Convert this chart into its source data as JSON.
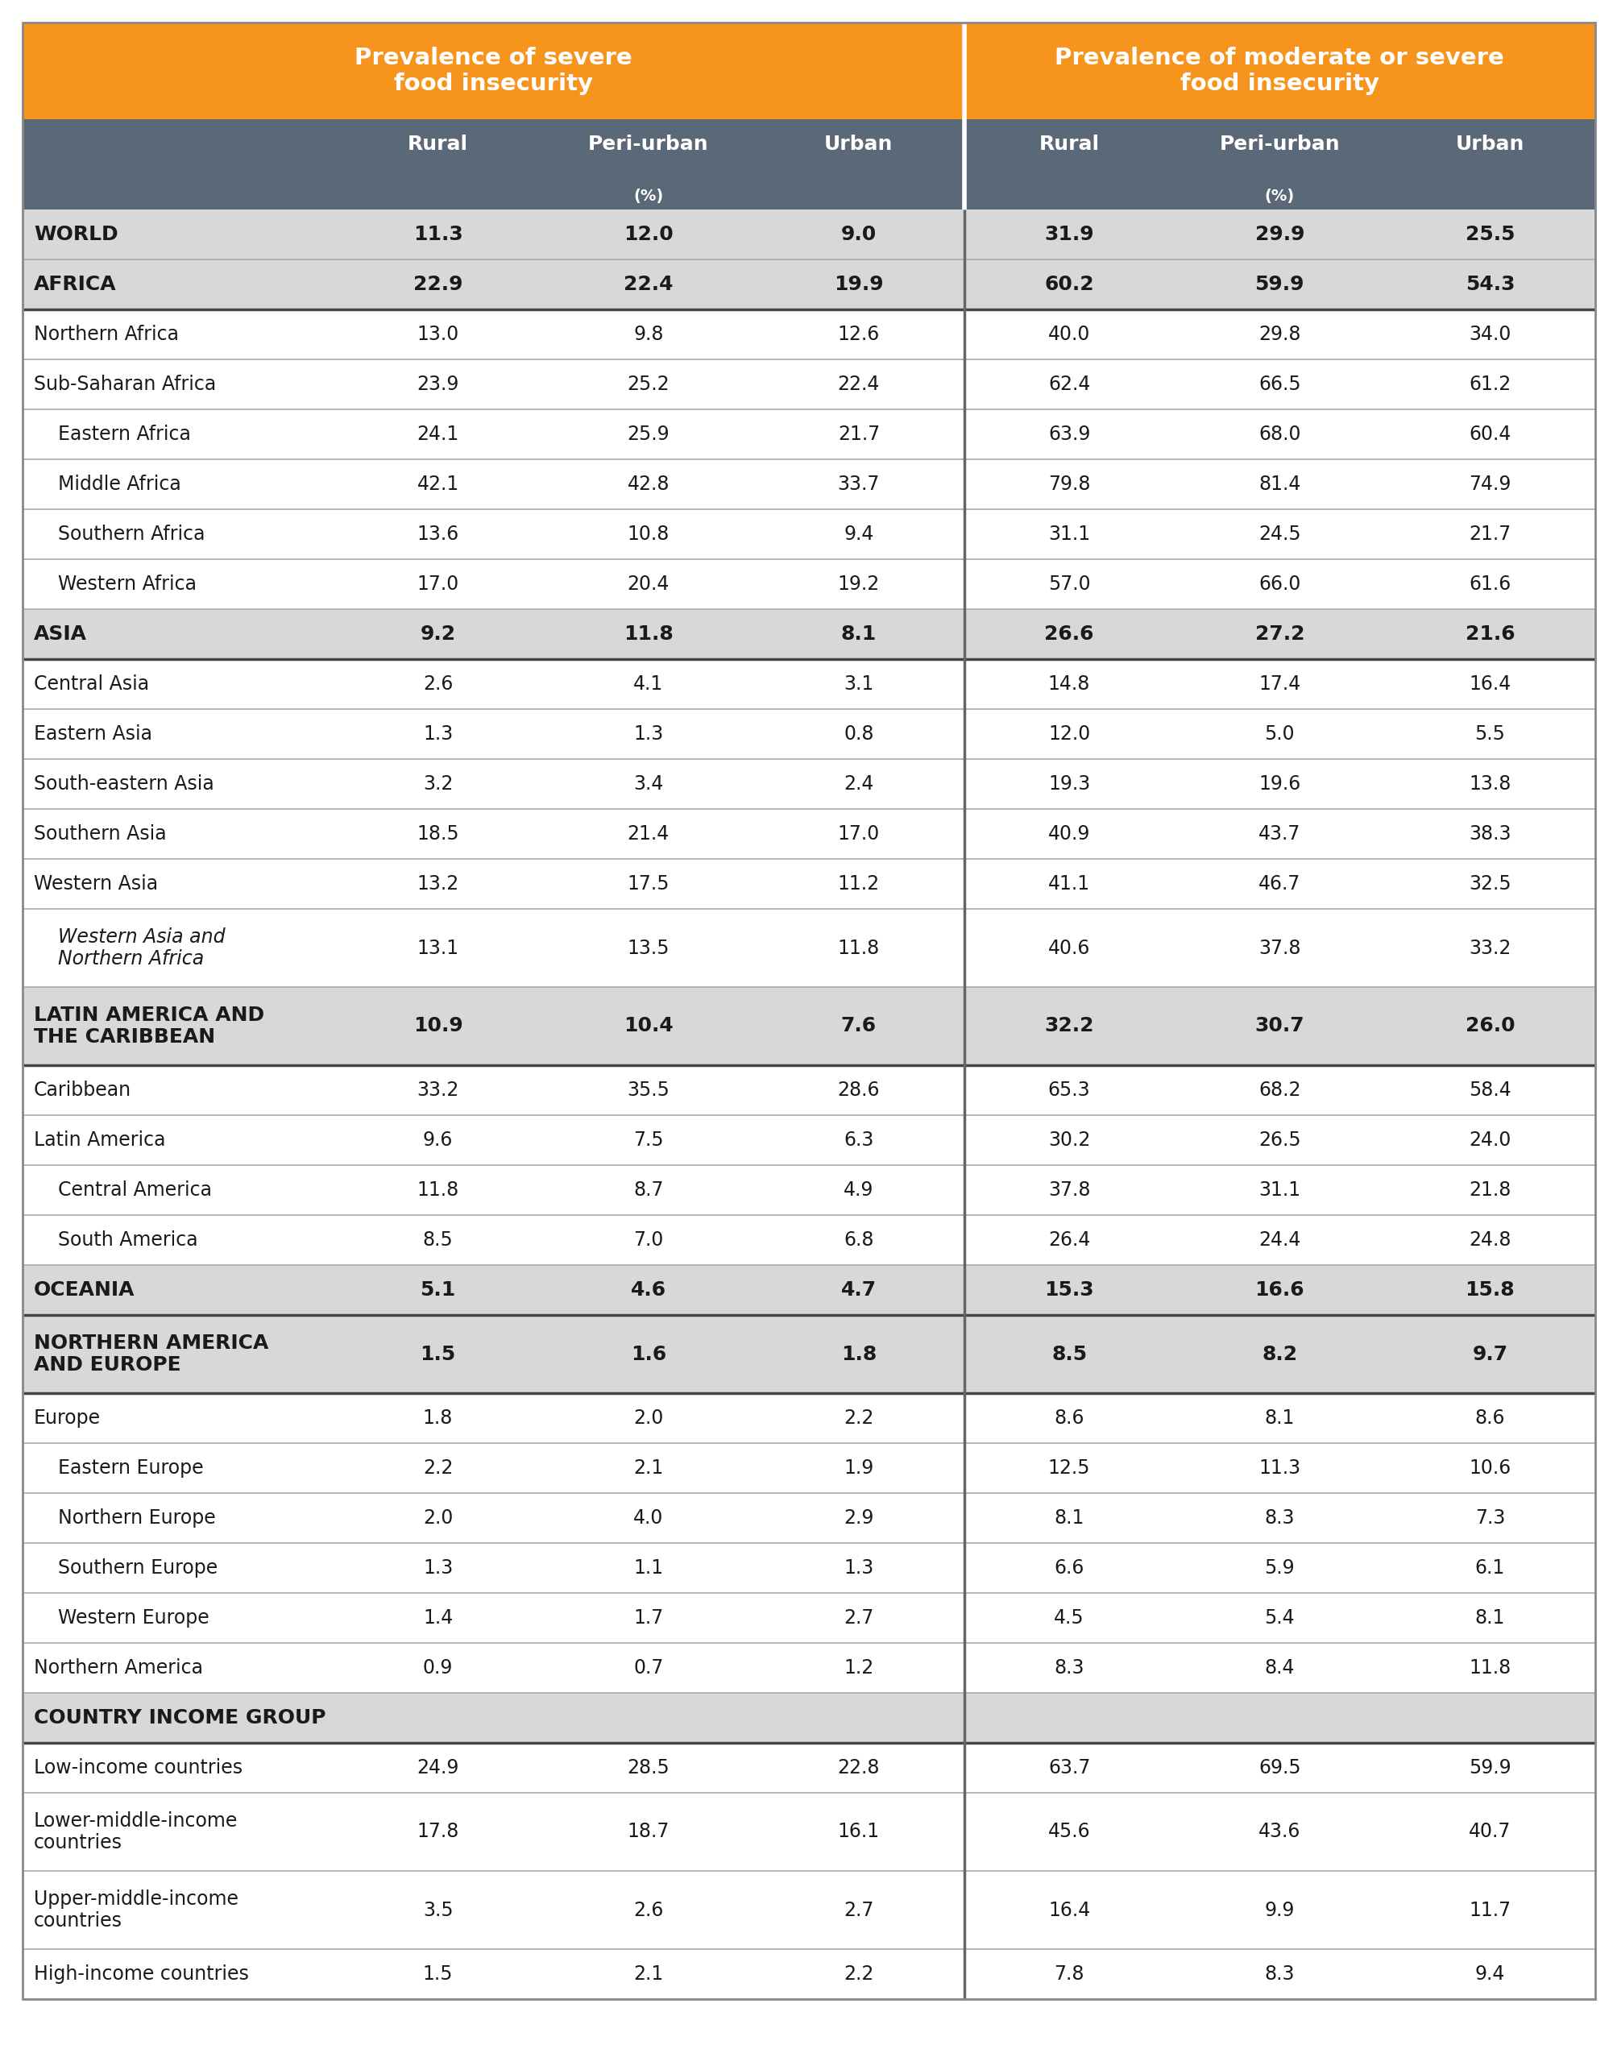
{
  "col1_header": "Prevalence of severe\nfood insecurity",
  "col2_header": "Prevalence of moderate or severe\nfood insecurity",
  "orange_color": "#F7941D",
  "dark_header_color": "#5B6878",
  "light_gray_bg": "#D8D8D8",
  "white_bg": "#FFFFFF",
  "text_color": "#1A1A1A",
  "divider_light": "#AAAAAA",
  "divider_dark": "#444444",
  "rows": [
    {
      "label": "WORLD",
      "indent": 0,
      "bold": true,
      "italic": false,
      "gray_bg": true,
      "values": [
        "11.3",
        "12.0",
        "9.0",
        "31.9",
        "29.9",
        "25.5"
      ]
    },
    {
      "label": "AFRICA",
      "indent": 0,
      "bold": true,
      "italic": false,
      "gray_bg": true,
      "values": [
        "22.9",
        "22.4",
        "19.9",
        "60.2",
        "59.9",
        "54.3"
      ]
    },
    {
      "label": "Northern Africa",
      "indent": 0,
      "bold": false,
      "italic": false,
      "gray_bg": false,
      "values": [
        "13.0",
        "9.8",
        "12.6",
        "40.0",
        "29.8",
        "34.0"
      ]
    },
    {
      "label": "Sub-Saharan Africa",
      "indent": 0,
      "bold": false,
      "italic": false,
      "gray_bg": false,
      "values": [
        "23.9",
        "25.2",
        "22.4",
        "62.4",
        "66.5",
        "61.2"
      ]
    },
    {
      "label": "Eastern Africa",
      "indent": 1,
      "bold": false,
      "italic": false,
      "gray_bg": false,
      "values": [
        "24.1",
        "25.9",
        "21.7",
        "63.9",
        "68.0",
        "60.4"
      ]
    },
    {
      "label": "Middle Africa",
      "indent": 1,
      "bold": false,
      "italic": false,
      "gray_bg": false,
      "values": [
        "42.1",
        "42.8",
        "33.7",
        "79.8",
        "81.4",
        "74.9"
      ]
    },
    {
      "label": "Southern Africa",
      "indent": 1,
      "bold": false,
      "italic": false,
      "gray_bg": false,
      "values": [
        "13.6",
        "10.8",
        "9.4",
        "31.1",
        "24.5",
        "21.7"
      ]
    },
    {
      "label": "Western Africa",
      "indent": 1,
      "bold": false,
      "italic": false,
      "gray_bg": false,
      "values": [
        "17.0",
        "20.4",
        "19.2",
        "57.0",
        "66.0",
        "61.6"
      ]
    },
    {
      "label": "ASIA",
      "indent": 0,
      "bold": true,
      "italic": false,
      "gray_bg": true,
      "values": [
        "9.2",
        "11.8",
        "8.1",
        "26.6",
        "27.2",
        "21.6"
      ]
    },
    {
      "label": "Central Asia",
      "indent": 0,
      "bold": false,
      "italic": false,
      "gray_bg": false,
      "values": [
        "2.6",
        "4.1",
        "3.1",
        "14.8",
        "17.4",
        "16.4"
      ]
    },
    {
      "label": "Eastern Asia",
      "indent": 0,
      "bold": false,
      "italic": false,
      "gray_bg": false,
      "values": [
        "1.3",
        "1.3",
        "0.8",
        "12.0",
        "5.0",
        "5.5"
      ]
    },
    {
      "label": "South-eastern Asia",
      "indent": 0,
      "bold": false,
      "italic": false,
      "gray_bg": false,
      "values": [
        "3.2",
        "3.4",
        "2.4",
        "19.3",
        "19.6",
        "13.8"
      ]
    },
    {
      "label": "Southern Asia",
      "indent": 0,
      "bold": false,
      "italic": false,
      "gray_bg": false,
      "values": [
        "18.5",
        "21.4",
        "17.0",
        "40.9",
        "43.7",
        "38.3"
      ]
    },
    {
      "label": "Western Asia",
      "indent": 0,
      "bold": false,
      "italic": false,
      "gray_bg": false,
      "values": [
        "13.2",
        "17.5",
        "11.2",
        "41.1",
        "46.7",
        "32.5"
      ]
    },
    {
      "label": "Western Asia and\nNorthern Africa",
      "indent": 1,
      "bold": false,
      "italic": true,
      "gray_bg": false,
      "values": [
        "13.1",
        "13.5",
        "11.8",
        "40.6",
        "37.8",
        "33.2"
      ]
    },
    {
      "label": "LATIN AMERICA AND\nTHE CARIBBEAN",
      "indent": 0,
      "bold": true,
      "italic": false,
      "gray_bg": true,
      "values": [
        "10.9",
        "10.4",
        "7.6",
        "32.2",
        "30.7",
        "26.0"
      ]
    },
    {
      "label": "Caribbean",
      "indent": 0,
      "bold": false,
      "italic": false,
      "gray_bg": false,
      "values": [
        "33.2",
        "35.5",
        "28.6",
        "65.3",
        "68.2",
        "58.4"
      ]
    },
    {
      "label": "Latin America",
      "indent": 0,
      "bold": false,
      "italic": false,
      "gray_bg": false,
      "values": [
        "9.6",
        "7.5",
        "6.3",
        "30.2",
        "26.5",
        "24.0"
      ]
    },
    {
      "label": "Central America",
      "indent": 1,
      "bold": false,
      "italic": false,
      "gray_bg": false,
      "values": [
        "11.8",
        "8.7",
        "4.9",
        "37.8",
        "31.1",
        "21.8"
      ]
    },
    {
      "label": "South America",
      "indent": 1,
      "bold": false,
      "italic": false,
      "gray_bg": false,
      "values": [
        "8.5",
        "7.0",
        "6.8",
        "26.4",
        "24.4",
        "24.8"
      ]
    },
    {
      "label": "OCEANIA",
      "indent": 0,
      "bold": true,
      "italic": false,
      "gray_bg": true,
      "values": [
        "5.1",
        "4.6",
        "4.7",
        "15.3",
        "16.6",
        "15.8"
      ]
    },
    {
      "label": "NORTHERN AMERICA\nAND EUROPE",
      "indent": 0,
      "bold": true,
      "italic": false,
      "gray_bg": true,
      "values": [
        "1.5",
        "1.6",
        "1.8",
        "8.5",
        "8.2",
        "9.7"
      ]
    },
    {
      "label": "Europe",
      "indent": 0,
      "bold": false,
      "italic": false,
      "gray_bg": false,
      "values": [
        "1.8",
        "2.0",
        "2.2",
        "8.6",
        "8.1",
        "8.6"
      ]
    },
    {
      "label": "Eastern Europe",
      "indent": 1,
      "bold": false,
      "italic": false,
      "gray_bg": false,
      "values": [
        "2.2",
        "2.1",
        "1.9",
        "12.5",
        "11.3",
        "10.6"
      ]
    },
    {
      "label": "Northern Europe",
      "indent": 1,
      "bold": false,
      "italic": false,
      "gray_bg": false,
      "values": [
        "2.0",
        "4.0",
        "2.9",
        "8.1",
        "8.3",
        "7.3"
      ]
    },
    {
      "label": "Southern Europe",
      "indent": 1,
      "bold": false,
      "italic": false,
      "gray_bg": false,
      "values": [
        "1.3",
        "1.1",
        "1.3",
        "6.6",
        "5.9",
        "6.1"
      ]
    },
    {
      "label": "Western Europe",
      "indent": 1,
      "bold": false,
      "italic": false,
      "gray_bg": false,
      "values": [
        "1.4",
        "1.7",
        "2.7",
        "4.5",
        "5.4",
        "8.1"
      ]
    },
    {
      "label": "Northern America",
      "indent": 0,
      "bold": false,
      "italic": false,
      "gray_bg": false,
      "values": [
        "0.9",
        "0.7",
        "1.2",
        "8.3",
        "8.4",
        "11.8"
      ]
    },
    {
      "label": "COUNTRY INCOME GROUP",
      "indent": 0,
      "bold": true,
      "italic": false,
      "gray_bg": true,
      "values": [
        "",
        "",
        "",
        "",
        "",
        ""
      ]
    },
    {
      "label": "Low-income countries",
      "indent": 0,
      "bold": false,
      "italic": false,
      "gray_bg": false,
      "values": [
        "24.9",
        "28.5",
        "22.8",
        "63.7",
        "69.5",
        "59.9"
      ]
    },
    {
      "label": "Lower-middle-income\ncountries",
      "indent": 0,
      "bold": false,
      "italic": false,
      "gray_bg": false,
      "values": [
        "17.8",
        "18.7",
        "16.1",
        "45.6",
        "43.6",
        "40.7"
      ]
    },
    {
      "label": "Upper-middle-income\ncountries",
      "indent": 0,
      "bold": false,
      "italic": false,
      "gray_bg": false,
      "values": [
        "3.5",
        "2.6",
        "2.7",
        "16.4",
        "9.9",
        "11.7"
      ]
    },
    {
      "label": "High-income countries",
      "indent": 0,
      "bold": false,
      "italic": false,
      "gray_bg": false,
      "values": [
        "1.5",
        "2.1",
        "2.2",
        "7.8",
        "8.3",
        "9.4"
      ]
    }
  ]
}
